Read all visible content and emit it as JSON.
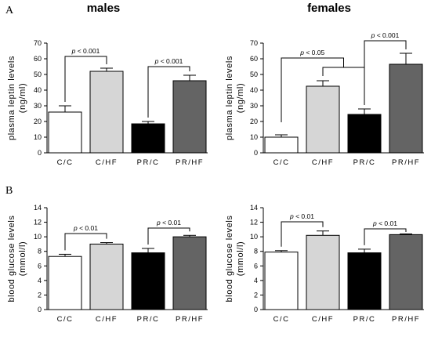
{
  "panels": {
    "A": "A",
    "B": "B"
  },
  "columns": {
    "left": "males",
    "right": "females"
  },
  "colors": {
    "C/C": "#ffffff",
    "C/HF": "#d6d6d6",
    "PR/C": "#000000",
    "PR/HF": "#646464",
    "stroke": "#000000"
  },
  "chart_data": [
    {
      "type": "bar",
      "panel": "A",
      "group": "males",
      "categories": [
        "C/C",
        "C/HF",
        "PR/C",
        "PR/HF"
      ],
      "values": [
        26,
        52,
        18.5,
        46
      ],
      "errors": [
        4,
        2,
        1.5,
        3.5
      ],
      "ylabel_line1": "plasma leptin levels",
      "ylabel_line2": "(ng/ml)",
      "ylim": [
        0,
        70
      ],
      "yticks": [
        0,
        10,
        20,
        30,
        40,
        50,
        60,
        70
      ],
      "comparisons": [
        {
          "from": 0,
          "to": 1,
          "pre": "p",
          "post": " < 0.001"
        },
        {
          "from": 2,
          "to": 3,
          "pre": "p",
          "post": " < 0.001"
        }
      ]
    },
    {
      "type": "bar",
      "panel": "A",
      "group": "females",
      "categories": [
        "C/C",
        "C/HF",
        "PR/C",
        "PR/HF"
      ],
      "values": [
        10,
        42.5,
        24.5,
        56.5
      ],
      "errors": [
        1.5,
        3.5,
        3.5,
        7
      ],
      "ylabel_line1": "plasma leptin levels",
      "ylabel_line2": "(ng/ml)",
      "ylim": [
        0,
        70
      ],
      "yticks": [
        0,
        10,
        20,
        30,
        40,
        50,
        60,
        70
      ],
      "comparisons": [
        {
          "from": 0,
          "to": 2,
          "pre": "p",
          "post": " < 0.05",
          "style": "bracket-group"
        },
        {
          "from": 2,
          "to": 3,
          "pre": "p",
          "post": " < 0.001"
        }
      ]
    },
    {
      "type": "bar",
      "panel": "B",
      "group": "males",
      "categories": [
        "C/C",
        "C/HF",
        "PR/C",
        "PR/HF"
      ],
      "values": [
        7.3,
        9.0,
        7.8,
        10.0
      ],
      "errors": [
        0.3,
        0.2,
        0.6,
        0.2
      ],
      "ylabel_line1": "blood glucose levels",
      "ylabel_line2": "(mmol/l)",
      "ylim": [
        0,
        14
      ],
      "yticks": [
        0,
        2,
        4,
        6,
        8,
        10,
        12,
        14
      ],
      "comparisons": [
        {
          "from": 0,
          "to": 1,
          "pre": "p",
          "post": " < 0.01"
        },
        {
          "from": 2,
          "to": 3,
          "pre": "p",
          "post": " < 0.01"
        }
      ]
    },
    {
      "type": "bar",
      "panel": "B",
      "group": "females",
      "categories": [
        "C/C",
        "C/HF",
        "PR/C",
        "PR/HF"
      ],
      "values": [
        7.9,
        10.2,
        7.8,
        10.3
      ],
      "errors": [
        0.2,
        0.6,
        0.5,
        0.1
      ],
      "ylabel_line1": "blood glucose levels",
      "ylabel_line2": "(mmol/l)",
      "ylim": [
        0,
        14
      ],
      "yticks": [
        0,
        2,
        4,
        6,
        8,
        10,
        12,
        14
      ],
      "comparisons": [
        {
          "from": 0,
          "to": 1,
          "pre": "p",
          "post": " < 0.01"
        },
        {
          "from": 2,
          "to": 3,
          "pre": "p",
          "post": " < 0.01"
        }
      ]
    }
  ]
}
